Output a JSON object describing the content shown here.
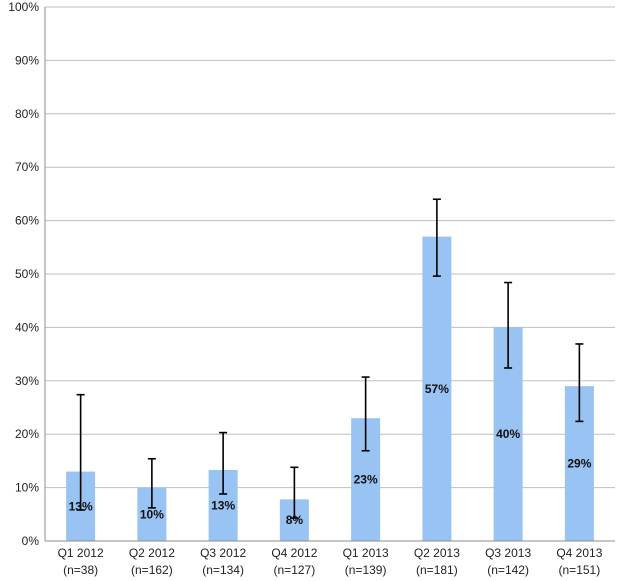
{
  "chart_data": {
    "type": "bar",
    "categories": [
      {
        "line1": "Q1 2012",
        "line2": "(n=38)"
      },
      {
        "line1": "Q2 2012",
        "line2": "(n=162)"
      },
      {
        "line1": "Q3 2012",
        "line2": "(n=134)"
      },
      {
        "line1": "Q4 2012",
        "line2": "(n=127)"
      },
      {
        "line1": "Q1 2013",
        "line2": "(n=139)"
      },
      {
        "line1": "Q2 2013",
        "line2": "(n=181)"
      },
      {
        "line1": "Q3 2013",
        "line2": "(n=142)"
      },
      {
        "line1": "Q4 2013",
        "line2": "(n=151)"
      }
    ],
    "series": [
      {
        "values": [
          13,
          10,
          13.3,
          7.8,
          23,
          57,
          40,
          29
        ],
        "data_labels": [
          "13%",
          "10%",
          "13%",
          "8%",
          "23%",
          "57%",
          "40%",
          "29%"
        ],
        "error_low": [
          5.8,
          6.2,
          8.8,
          4.3,
          16.9,
          49.6,
          32.4,
          22.4
        ],
        "error_high": [
          27.4,
          15.4,
          20.3,
          13.8,
          30.7,
          64,
          48.4,
          36.9
        ]
      }
    ],
    "ylim": [
      0,
      100
    ],
    "y_ticks": [
      0,
      10,
      20,
      30,
      40,
      50,
      60,
      70,
      80,
      90,
      100
    ],
    "y_tick_labels": [
      "0%",
      "10%",
      "20%",
      "30%",
      "40%",
      "50%",
      "60%",
      "70%",
      "80%",
      "90%",
      "100%"
    ],
    "grid": true,
    "colors": {
      "bar": "#99c3f2",
      "error_bar": "#000000",
      "grid": "#bfbfbf"
    }
  }
}
